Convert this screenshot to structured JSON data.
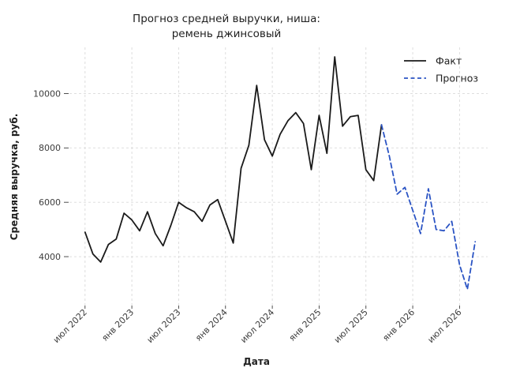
{
  "figure": {
    "background": "#ffffff"
  },
  "chart_data": {
    "type": "line",
    "title_lines": [
      "Прогноз средней выручки, ниша:",
      "ремень джинсовый"
    ],
    "xlabel": "Дата",
    "ylabel": "Средняя выручка, руб.",
    "legend": {
      "position": "upper right",
      "entries": [
        "Факт",
        "Прогноз"
      ]
    },
    "x_tick_labels": [
      "июл 2022",
      "янв 2023",
      "июл 2023",
      "янв 2024",
      "июл 2024",
      "янв 2025",
      "июл 2025",
      "янв 2026",
      "июл 2026"
    ],
    "x_tick_month_indices": [
      0,
      6,
      12,
      18,
      24,
      30,
      36,
      42,
      48
    ],
    "y_tick_labels": [
      "4000",
      "6000",
      "8000",
      "10000"
    ],
    "y_tick_values": [
      4000,
      6000,
      8000,
      10000
    ],
    "ylim": [
      2200,
      11700
    ],
    "xlim_month_index": [
      -2,
      51.6
    ],
    "grid": {
      "visible": true,
      "style": "dashed",
      "color": "#dadada"
    },
    "series": [
      {
        "name": "Факт",
        "color": "#1a1a1a",
        "line_style": "solid",
        "start_month": "июл 2022",
        "start_month_index": 0,
        "values": [
          4900,
          4100,
          3800,
          4450,
          4650,
          5600,
          5350,
          4950,
          5650,
          4850,
          4400,
          5150,
          6000,
          5800,
          5650,
          5300,
          5900,
          6100,
          5300,
          4500,
          7250,
          8100,
          10300,
          8300,
          7700,
          8500,
          9000,
          9300,
          8900,
          7200,
          9200,
          7800,
          11350,
          8800,
          9150,
          9200,
          7200,
          6800,
          8850
        ]
      },
      {
        "name": "Прогноз",
        "color": "#2b54c4",
        "line_style": "dashed",
        "start_month": "сен 2025",
        "start_month_index": 38,
        "values": [
          8850,
          7700,
          6300,
          6550,
          5700,
          4850,
          6500,
          5000,
          4950,
          5300,
          3700,
          2800,
          4550
        ]
      }
    ]
  }
}
